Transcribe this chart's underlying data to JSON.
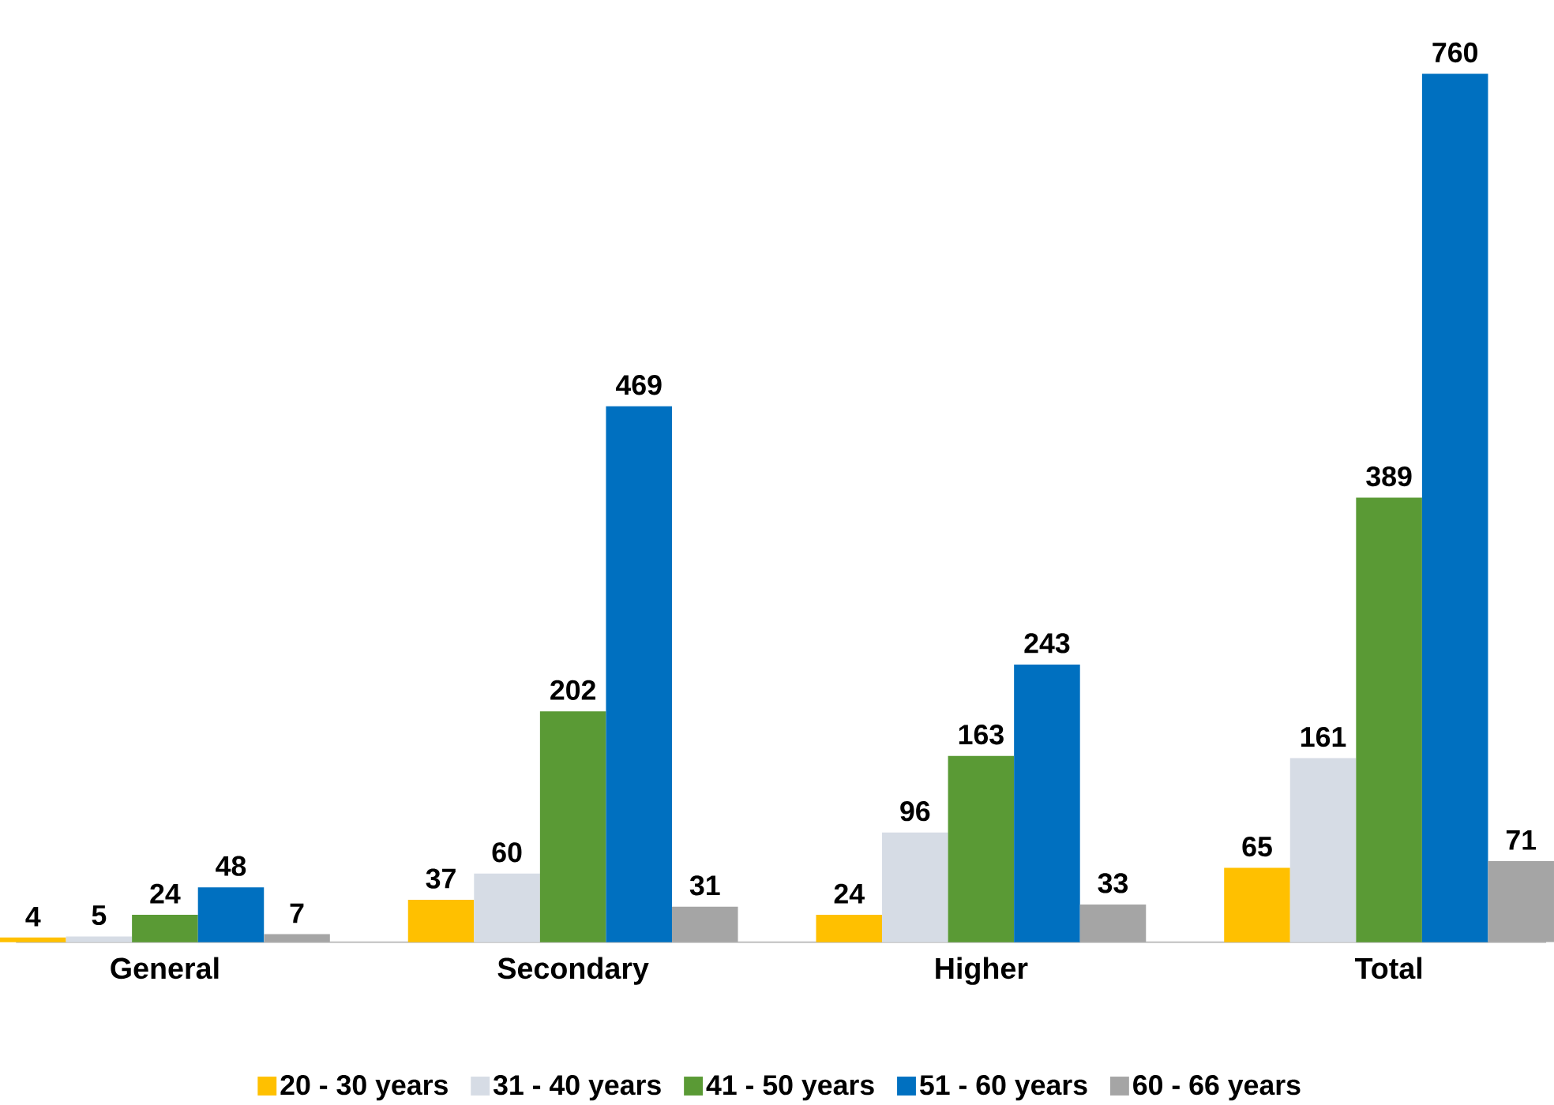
{
  "chart_data": {
    "type": "bar",
    "categories": [
      "General",
      "Secondary",
      "Higher",
      "Total"
    ],
    "series": [
      {
        "name": "20 - 30 years",
        "color": "#ffc000",
        "values": [
          4,
          37,
          24,
          65
        ]
      },
      {
        "name": "31 - 40 years",
        "color": "#d6dce5",
        "values": [
          5,
          60,
          96,
          161
        ]
      },
      {
        "name": "41 - 50 years",
        "color": "#5a9a35",
        "values": [
          24,
          202,
          163,
          389
        ]
      },
      {
        "name": "51 - 60 years",
        "color": "#0070c0",
        "values": [
          48,
          469,
          243,
          760
        ]
      },
      {
        "name": "60 - 66 years",
        "color": "#a5a5a5",
        "values": [
          7,
          31,
          33,
          71
        ]
      }
    ],
    "data_labels": true,
    "legend": "bottom"
  }
}
